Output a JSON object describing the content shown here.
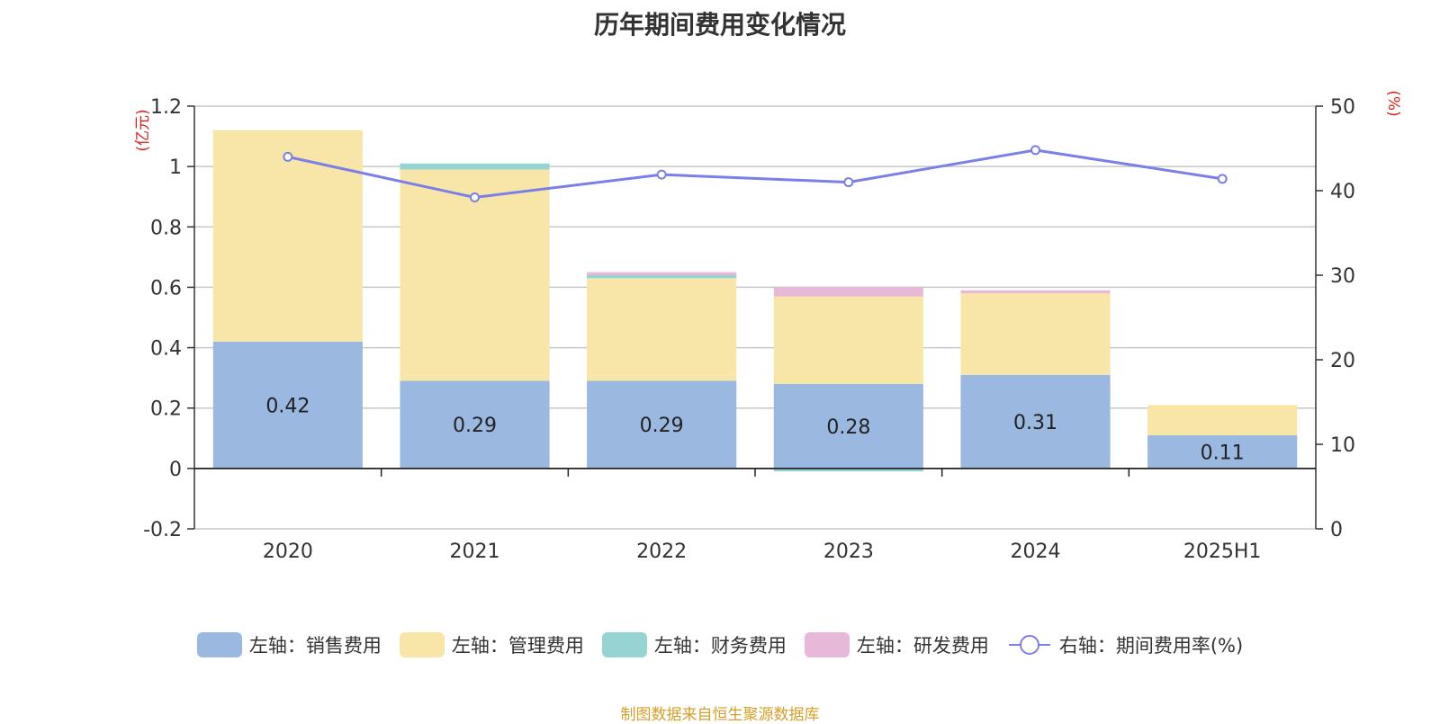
{
  "chart_data": {
    "type": "bar",
    "title": "历年期间费用变化情况",
    "categories": [
      "2020",
      "2021",
      "2022",
      "2023",
      "2024",
      "2025H1"
    ],
    "left_axis": {
      "unit_label": "(亿元)",
      "ylim": [
        -0.2,
        1.2
      ],
      "ticks": [
        "-0.2",
        "0",
        "0.2",
        "0.4",
        "0.6",
        "0.8",
        "1",
        "1.2"
      ]
    },
    "right_axis": {
      "unit_label": "(%)",
      "ylim": [
        0,
        50
      ],
      "ticks": [
        "0",
        "10",
        "20",
        "30",
        "40",
        "50"
      ]
    },
    "series": [
      {
        "name": "左轴：销售费用",
        "type": "bar",
        "axis": "left",
        "color": "#9bb8e0",
        "values": [
          0.42,
          0.29,
          0.29,
          0.28,
          0.31,
          0.11
        ],
        "labels": [
          "0.42",
          "0.29",
          "0.29",
          "0.28",
          "0.31",
          "0.11"
        ]
      },
      {
        "name": "左轴：管理费用",
        "type": "bar",
        "axis": "left",
        "color": "#f8e6a8",
        "values": [
          0.7,
          0.7,
          0.34,
          0.29,
          0.27,
          0.1
        ]
      },
      {
        "name": "左轴：财务费用",
        "type": "bar",
        "axis": "left",
        "color": "#96d3d3",
        "values": [
          0.0,
          0.02,
          0.01,
          -0.01,
          0.0,
          0.0
        ]
      },
      {
        "name": "左轴：研发费用",
        "type": "bar",
        "axis": "left",
        "color": "#e8b8d8",
        "values": [
          0.0,
          0.0,
          0.01,
          0.03,
          0.01,
          0.0
        ]
      },
      {
        "name": "右轴：期间费用率(%)",
        "type": "line",
        "axis": "right",
        "color": "#7b7fe8",
        "values": [
          44.0,
          39.2,
          41.9,
          41.0,
          44.8,
          41.4
        ]
      }
    ],
    "legend_position": "bottom",
    "grid": true
  },
  "source_note": "制图数据来自恒生聚源数据库"
}
